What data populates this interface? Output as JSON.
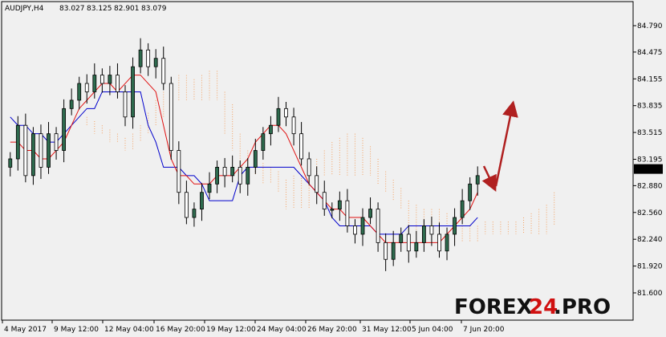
{
  "header": {
    "symbol": "AUDJPY,H4",
    "open": "83.027",
    "high": "83.125",
    "low": "82.901",
    "close": "83.079"
  },
  "price_axis": {
    "ticks": [
      "84.790",
      "84.475",
      "84.155",
      "83.835",
      "83.515",
      "83.195",
      "82.880",
      "82.560",
      "82.240",
      "81.920",
      "81.600"
    ],
    "current_price": "83.079"
  },
  "time_axis": {
    "ticks": [
      "4 May 2017",
      "9 May 12:00",
      "12 May 04:00",
      "16 May 20:00",
      "19 May 12:00",
      "24 May 04:00",
      "26 May 20:00",
      "31 May 12:00",
      "5 Jun 04:00",
      "7 Jun 20:00"
    ]
  },
  "watermark": {
    "part1": "FOREX",
    "part2": "24",
    "part3": ".PRO"
  },
  "chart_data": {
    "type": "candlestick",
    "indicator": "ichimoku",
    "ylim": [
      81.45,
      85.0
    ],
    "x_ticks": [
      "4 May 2017",
      "9 May 12:00",
      "12 May 04:00",
      "16 May 20:00",
      "19 May 12:00",
      "24 May 04:00",
      "26 May 20:00",
      "31 May 12:00",
      "5 Jun 04:00",
      "7 Jun 20:00"
    ],
    "candles_close": [
      83.2,
      83.6,
      83.0,
      83.5,
      83.1,
      83.5,
      83.3,
      83.8,
      83.9,
      84.1,
      84.0,
      84.2,
      84.1,
      84.2,
      84.0,
      83.7,
      84.3,
      84.5,
      84.3,
      84.4,
      84.1,
      83.3,
      82.8,
      82.5,
      82.6,
      82.8,
      82.9,
      83.1,
      83.0,
      83.1,
      82.9,
      83.1,
      83.3,
      83.5,
      83.6,
      83.8,
      83.7,
      83.5,
      83.2,
      83.0,
      82.8,
      82.6,
      82.6,
      82.7,
      82.4,
      82.3,
      82.5,
      82.6,
      82.2,
      82.0,
      82.2,
      82.3,
      82.1,
      82.2,
      82.4,
      82.3,
      82.1,
      82.3,
      82.5,
      82.7,
      82.9,
      83.0
    ],
    "tenkan": [
      83.4,
      83.4,
      83.3,
      83.3,
      83.2,
      83.2,
      83.3,
      83.4,
      83.6,
      83.8,
      83.9,
      84.0,
      84.1,
      84.1,
      84.0,
      84.1,
      84.2,
      84.2,
      84.1,
      84.0,
      83.6,
      83.2,
      83.0,
      83.0,
      82.9,
      82.9,
      82.9,
      83.0,
      83.0,
      83.0,
      83.1,
      83.2,
      83.4,
      83.5,
      83.6,
      83.6,
      83.5,
      83.3,
      83.1,
      82.9,
      82.8,
      82.7,
      82.6,
      82.6,
      82.5,
      82.5,
      82.5,
      82.4,
      82.3,
      82.2,
      82.2,
      82.2,
      82.2,
      82.2,
      82.2,
      82.2,
      82.2,
      82.3,
      82.4,
      82.5,
      82.6,
      82.8
    ],
    "kijun": [
      83.7,
      83.6,
      83.6,
      83.5,
      83.5,
      83.4,
      83.4,
      83.5,
      83.6,
      83.7,
      83.8,
      83.8,
      84.0,
      84.0,
      84.0,
      84.0,
      84.0,
      84.0,
      83.6,
      83.4,
      83.1,
      83.1,
      83.1,
      83.0,
      83.0,
      82.9,
      82.7,
      82.7,
      82.7,
      82.7,
      83.0,
      83.1,
      83.1,
      83.1,
      83.1,
      83.1,
      83.1,
      83.1,
      83.0,
      82.9,
      82.8,
      82.7,
      82.5,
      82.4,
      82.4,
      82.4,
      82.4,
      82.4,
      82.3,
      82.3,
      82.3,
      82.3,
      82.4,
      82.4,
      82.4,
      82.4,
      82.4,
      82.4,
      82.4,
      82.4,
      82.4,
      82.5
    ],
    "annotations": [
      "down-arrow",
      "up-arrow"
    ]
  }
}
